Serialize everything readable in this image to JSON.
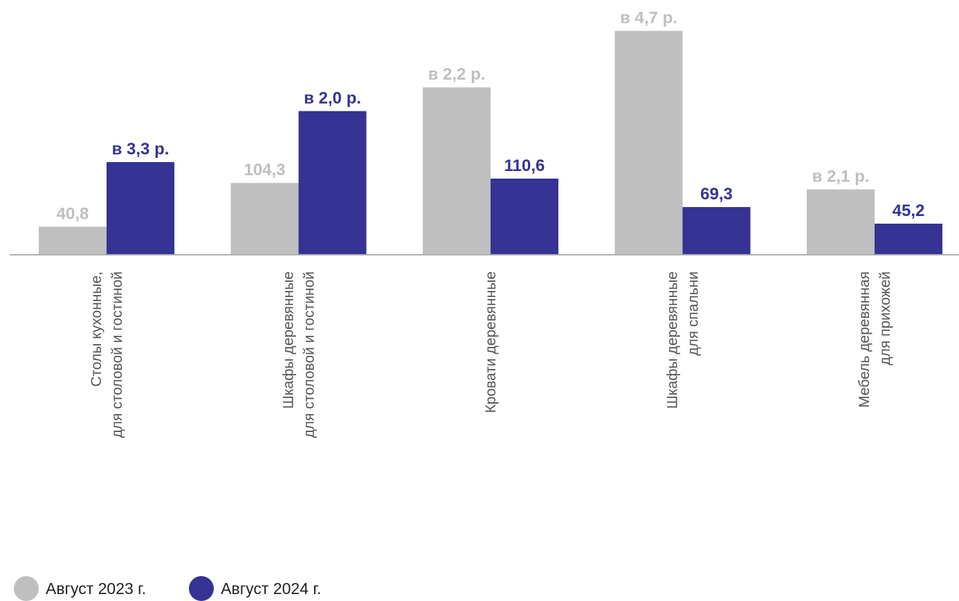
{
  "chart_data": {
    "type": "bar",
    "categories": [
      [
        "Столы кухонные,",
        "для столовой и гостиной"
      ],
      [
        "Шкафы деревянные",
        "для столовой и гостиной"
      ],
      [
        "Кровати деревянные"
      ],
      [
        "Шкафы деревянные",
        "для спальни"
      ],
      [
        "Мебель деревянная",
        "для прихожей"
      ]
    ],
    "series": [
      {
        "name": "Август 2023 г.",
        "color": "#bfbfbf",
        "values": [
          40.8,
          104.3,
          243.0,
          325.0,
          94.9
        ],
        "labels": [
          "40,8",
          "104,3",
          "в 2,2 р.",
          "в 4,7 р.",
          "в 2,1 р."
        ]
      },
      {
        "name": "Август 2024 г.",
        "color": "#353393",
        "values": [
          134.6,
          208.6,
          110.6,
          69.3,
          45.2
        ],
        "labels": [
          "в 3,3 р.",
          "в 2,0 р.",
          "110,6",
          "69,3",
          "45,2"
        ]
      }
    ],
    "legend_position": "bottom-left",
    "grid": false
  }
}
